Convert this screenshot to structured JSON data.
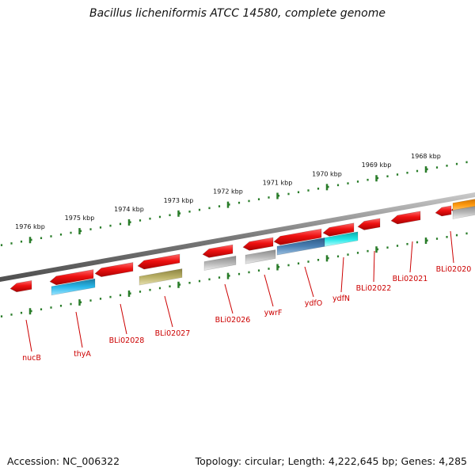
{
  "title": "Bacillus licheniformis ATCC 14580, complete genome",
  "footer": {
    "accession": "Accession: NC_006322",
    "topology": "Topology: circular; Length: 4,222,645 bp; Genes: 4,285"
  },
  "colors": {
    "backbone": "#808080",
    "tick": "#2a7d2a",
    "gene_label": "#cc0000",
    "cds": "#ee1111",
    "blue": "#2ab0e0",
    "cyan": "#22dddd",
    "olive": "#b3aa5c",
    "steel": "#4a7fb0",
    "grey": "#b0b0b0",
    "orange": "#ff9900"
  },
  "scale": {
    "unit": "kbp",
    "major_ticks": [
      {
        "label": "1976 kbp"
      },
      {
        "label": "1975 kbp"
      },
      {
        "label": "1974 kbp"
      },
      {
        "label": "1973 kbp"
      },
      {
        "label": "1972 kbp"
      },
      {
        "label": "1971 kbp"
      },
      {
        "label": "1970 kbp"
      },
      {
        "label": "1969 kbp"
      },
      {
        "label": "1968 kbp"
      }
    ]
  },
  "gene_labels": [
    {
      "name": "nucB"
    },
    {
      "name": "thyA"
    },
    {
      "name": "BLi02028"
    },
    {
      "name": "BLi02027"
    },
    {
      "name": "BLi02026"
    },
    {
      "name": "ywrF"
    },
    {
      "name": "ydfO"
    },
    {
      "name": "ydfN"
    },
    {
      "name": "BLi02022"
    },
    {
      "name": "BLi02021"
    },
    {
      "name": "BLi02020"
    }
  ]
}
